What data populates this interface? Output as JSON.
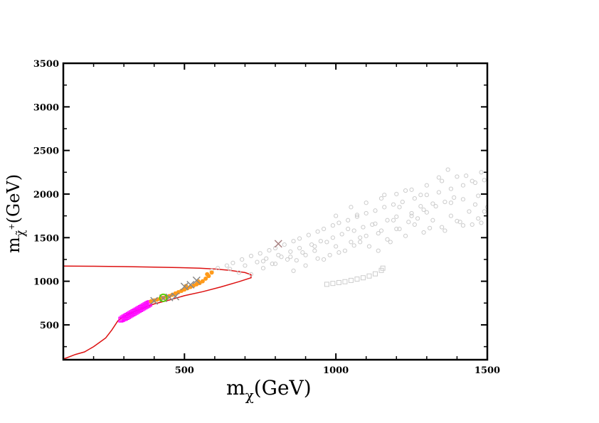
{
  "chart_data": {
    "type": "scatter",
    "xlabel": "m",
    "xlabel_sub": "χ",
    "xlabel_unit": "(GeV)",
    "ylabel": "m",
    "ylabel_sub": "χ̃",
    "ylabel_sup": "+",
    "ylabel_unit": "(GeV)",
    "xlim": [
      100,
      1500
    ],
    "ylim": [
      100,
      3500
    ],
    "xticks": [
      500,
      1000,
      1500
    ],
    "yticks": [
      500,
      1000,
      1500,
      2000,
      2500,
      3000,
      3500
    ],
    "grid": false,
    "legend": "none",
    "contour": {
      "color": "#dd1111",
      "upper": [
        [
          100,
          1175
        ],
        [
          200,
          1172
        ],
        [
          300,
          1168
        ],
        [
          400,
          1162
        ],
        [
          500,
          1155
        ],
        [
          550,
          1150
        ],
        [
          600,
          1140
        ],
        [
          650,
          1125
        ],
        [
          700,
          1100
        ],
        [
          720,
          1075
        ]
      ],
      "lower": [
        [
          720,
          1040
        ],
        [
          680,
          995
        ],
        [
          620,
          935
        ],
        [
          560,
          880
        ],
        [
          500,
          835
        ],
        [
          450,
          785
        ],
        [
          400,
          740
        ],
        [
          350,
          675
        ],
        [
          300,
          600
        ],
        [
          280,
          545
        ],
        [
          260,
          440
        ],
        [
          240,
          350
        ],
        [
          220,
          300
        ],
        [
          200,
          250
        ],
        [
          170,
          190
        ],
        [
          140,
          160
        ],
        [
          110,
          120
        ],
        [
          100,
          110
        ]
      ]
    },
    "series": [
      {
        "marker": "open-circle",
        "color": "#cccccc",
        "points": [
          [
            590,
            1120
          ],
          [
            610,
            1150
          ],
          [
            640,
            1180
          ],
          [
            660,
            1210
          ],
          [
            690,
            1250
          ],
          [
            720,
            1290
          ],
          [
            750,
            1320
          ],
          [
            780,
            1355
          ],
          [
            800,
            1380
          ],
          [
            830,
            1420
          ],
          [
            860,
            1460
          ],
          [
            880,
            1490
          ],
          [
            910,
            1530
          ],
          [
            940,
            1570
          ],
          [
            960,
            1600
          ],
          [
            990,
            1640
          ],
          [
            1010,
            1670
          ],
          [
            1040,
            1700
          ],
          [
            1070,
            1740
          ],
          [
            1100,
            1780
          ],
          [
            1130,
            1810
          ],
          [
            1160,
            1850
          ],
          [
            1190,
            1880
          ],
          [
            1220,
            1910
          ],
          [
            1260,
            1950
          ],
          [
            1300,
            1990
          ],
          [
            1340,
            2020
          ],
          [
            1380,
            2060
          ],
          [
            1420,
            2100
          ],
          [
            1460,
            2130
          ],
          [
            1490,
            2160
          ],
          [
            700,
            1180
          ],
          [
            740,
            1220
          ],
          [
            770,
            1260
          ],
          [
            810,
            1300
          ],
          [
            850,
            1340
          ],
          [
            880,
            1380
          ],
          [
            920,
            1420
          ],
          [
            950,
            1460
          ],
          [
            990,
            1500
          ],
          [
            1020,
            1540
          ],
          [
            1060,
            1580
          ],
          [
            1090,
            1620
          ],
          [
            1130,
            1660
          ],
          [
            1170,
            1700
          ],
          [
            1200,
            1740
          ],
          [
            1250,
            1780
          ],
          [
            1290,
            1820
          ],
          [
            1330,
            1860
          ],
          [
            1380,
            1900
          ],
          [
            1420,
            1940
          ],
          [
            1470,
            1980
          ],
          [
            650,
            1140
          ],
          [
            680,
            1100
          ],
          [
            720,
            1080
          ],
          [
            760,
            1150
          ],
          [
            800,
            1200
          ],
          [
            840,
            1250
          ],
          [
            860,
            1120
          ],
          [
            900,
            1300
          ],
          [
            930,
            1350
          ],
          [
            960,
            1250
          ],
          [
            1000,
            1400
          ],
          [
            1030,
            1350
          ],
          [
            1050,
            1450
          ],
          [
            1080,
            1500
          ],
          [
            1110,
            1400
          ],
          [
            1140,
            1550
          ],
          [
            1170,
            1480
          ],
          [
            1200,
            1600
          ],
          [
            1230,
            1520
          ],
          [
            1260,
            1650
          ],
          [
            1290,
            1560
          ],
          [
            1320,
            1700
          ],
          [
            1350,
            1620
          ],
          [
            1380,
            1750
          ],
          [
            1410,
            1680
          ],
          [
            1440,
            1800
          ],
          [
            1470,
            1720
          ],
          [
            1500,
            1850
          ],
          [
            1000,
            1750
          ],
          [
            1050,
            1850
          ],
          [
            1100,
            1900
          ],
          [
            1150,
            1950
          ],
          [
            1200,
            2000
          ],
          [
            1250,
            2050
          ],
          [
            1300,
            2100
          ],
          [
            1350,
            2150
          ],
          [
            1400,
            2200
          ],
          [
            1450,
            2150
          ],
          [
            1480,
            2250
          ],
          [
            1370,
            2280
          ],
          [
            1430,
            2210
          ],
          [
            1340,
            2190
          ],
          [
            1160,
            1990
          ],
          [
            1230,
            2040
          ],
          [
            1280,
            1990
          ],
          [
            1310,
            1610
          ],
          [
            1360,
            1580
          ],
          [
            1400,
            1690
          ],
          [
            1450,
            1650
          ],
          [
            1490,
            1800
          ],
          [
            1180,
            1450
          ],
          [
            1140,
            1350
          ],
          [
            1080,
            1450
          ],
          [
            1040,
            1600
          ],
          [
            980,
            1300
          ],
          [
            940,
            1260
          ],
          [
            900,
            1180
          ],
          [
            870,
            1240
          ],
          [
            820,
            1280
          ],
          [
            790,
            1200
          ],
          [
            760,
            1230
          ],
          [
            1210,
            1850
          ],
          [
            1250,
            1750
          ],
          [
            1190,
            1700
          ],
          [
            1120,
            1650
          ],
          [
            1070,
            1760
          ],
          [
            1320,
            1890
          ],
          [
            1280,
            1860
          ],
          [
            1390,
            1960
          ],
          [
            1460,
            1880
          ],
          [
            1480,
            1670
          ],
          [
            1420,
            1640
          ],
          [
            1360,
            1910
          ],
          [
            1300,
            1790
          ],
          [
            1270,
            1720
          ],
          [
            1240,
            1680
          ],
          [
            1210,
            1600
          ],
          [
            1150,
            1580
          ],
          [
            1100,
            1520
          ],
          [
            1060,
            1410
          ],
          [
            1010,
            1330
          ],
          [
            970,
            1450
          ],
          [
            930,
            1400
          ],
          [
            890,
            1330
          ],
          [
            850,
            1280
          ]
        ]
      },
      {
        "marker": "square",
        "color": "#cccccc",
        "points": [
          [
            970,
            965
          ],
          [
            990,
            975
          ],
          [
            1010,
            985
          ],
          [
            1030,
            995
          ],
          [
            1050,
            1010
          ],
          [
            1070,
            1025
          ],
          [
            1090,
            1040
          ],
          [
            1110,
            1060
          ],
          [
            1130,
            1085
          ],
          [
            1150,
            1125
          ],
          [
            1155,
            1150
          ]
        ]
      },
      {
        "marker": "square",
        "color": "#ff00ff",
        "points": [
          [
            290,
            565
          ],
          [
            295,
            580
          ],
          [
            300,
            590
          ],
          [
            305,
            600
          ],
          [
            310,
            610
          ],
          [
            315,
            620
          ],
          [
            320,
            630
          ],
          [
            325,
            640
          ],
          [
            330,
            650
          ],
          [
            335,
            660
          ],
          [
            340,
            670
          ],
          [
            345,
            680
          ],
          [
            350,
            690
          ],
          [
            355,
            700
          ],
          [
            360,
            710
          ],
          [
            365,
            720
          ],
          [
            370,
            730
          ],
          [
            375,
            740
          ],
          [
            380,
            750
          ],
          [
            385,
            755
          ],
          [
            295,
            560
          ],
          [
            305,
            575
          ],
          [
            315,
            595
          ],
          [
            325,
            615
          ],
          [
            335,
            635
          ],
          [
            345,
            655
          ],
          [
            355,
            675
          ],
          [
            365,
            695
          ],
          [
            375,
            715
          ],
          [
            385,
            735
          ],
          [
            290,
            555
          ],
          [
            300,
            570
          ],
          [
            310,
            585
          ],
          [
            320,
            605
          ],
          [
            330,
            625
          ],
          [
            340,
            645
          ],
          [
            350,
            665
          ],
          [
            360,
            685
          ],
          [
            370,
            705
          ],
          [
            380,
            725
          ]
        ]
      },
      {
        "marker": "filled-circle",
        "color": "#ff9a1a",
        "points": [
          [
            390,
            770
          ],
          [
            400,
            780
          ],
          [
            410,
            790
          ],
          [
            420,
            800
          ],
          [
            430,
            810
          ],
          [
            440,
            820
          ],
          [
            450,
            830
          ],
          [
            460,
            845
          ],
          [
            470,
            860
          ],
          [
            480,
            875
          ],
          [
            490,
            890
          ],
          [
            500,
            905
          ],
          [
            510,
            920
          ],
          [
            520,
            935
          ],
          [
            530,
            950
          ],
          [
            540,
            965
          ],
          [
            550,
            980
          ],
          [
            560,
            1000
          ],
          [
            570,
            1030
          ],
          [
            580,
            1060
          ],
          [
            590,
            1100
          ],
          [
            575,
            1080
          ],
          [
            545,
            1000
          ],
          [
            505,
            945
          ]
        ]
      },
      {
        "marker": "x",
        "color": "#a88080",
        "points": [
          [
            810,
            1430
          ]
        ]
      },
      {
        "marker": "x",
        "color": "#888888",
        "points": [
          [
            400,
            775
          ],
          [
            430,
            805
          ],
          [
            450,
            815
          ],
          [
            470,
            825
          ],
          [
            500,
            940
          ],
          [
            520,
            960
          ],
          [
            540,
            1010
          ]
        ]
      },
      {
        "marker": "open-circle-large",
        "color": "#55cc00",
        "points": [
          [
            430,
            810
          ]
        ]
      }
    ]
  }
}
